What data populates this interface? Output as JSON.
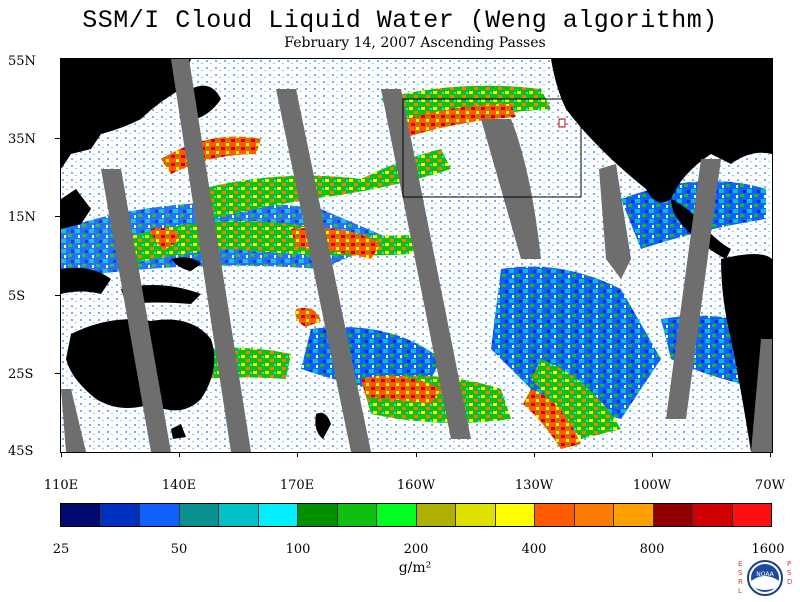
{
  "title": "SSM/I Cloud Liquid Water (Weng algorithm)",
  "subtitle": "February 14, 2007  Ascending Passes",
  "map": {
    "lat_labels": [
      "55N",
      "35N",
      "15N",
      "5S",
      "25S",
      "45S"
    ],
    "lon_labels": [
      "110E",
      "140E",
      "170E",
      "160W",
      "130W",
      "100W",
      "70W"
    ],
    "lat_range": [
      -45,
      55
    ],
    "lon_range": [
      110,
      290
    ],
    "colors": {
      "land": "#000000",
      "no_data_swath_gap": "#6e6e6e",
      "ocean_clear": "#ffffff",
      "box": "#000000"
    }
  },
  "colorbar": {
    "colors": [
      "#000a70",
      "#0030c0",
      "#1060ff",
      "#0a9090",
      "#00c0c8",
      "#00f0ff",
      "#009000",
      "#10c010",
      "#00ff20",
      "#b0b000",
      "#e0e000",
      "#ffff00",
      "#ff5a00",
      "#ff7a00",
      "#ffa000",
      "#900000",
      "#d00000",
      "#ff1010"
    ],
    "tick_labels": [
      "25",
      "50",
      "100",
      "200",
      "400",
      "800",
      "1600"
    ]
  },
  "unit_label": "g/m²",
  "logo": {
    "left_letters": "ESRL",
    "right_letters": "PSD",
    "center_text": "NOAA"
  }
}
